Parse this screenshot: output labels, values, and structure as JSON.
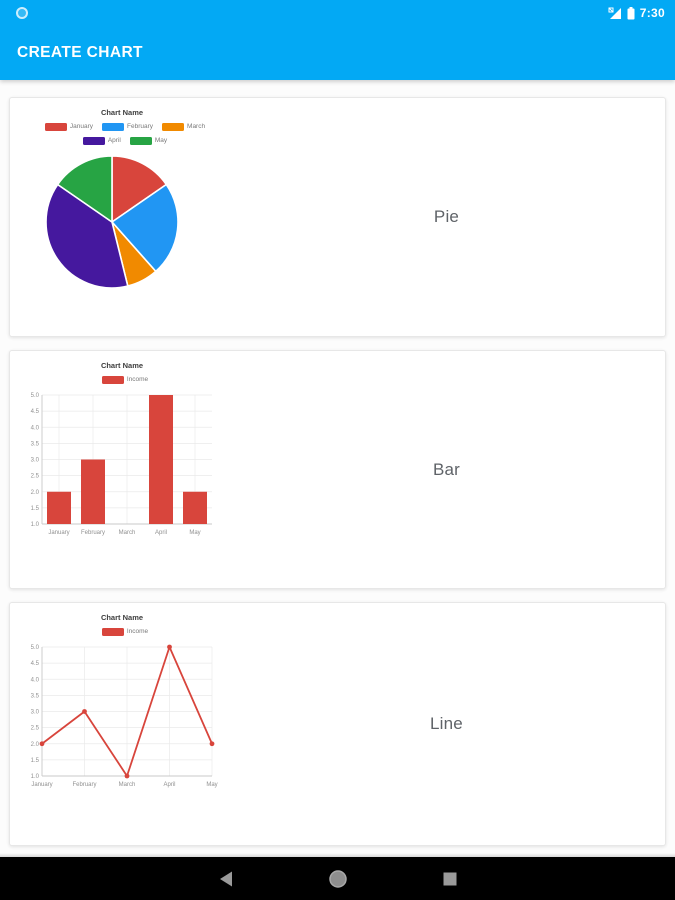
{
  "status_bar": {
    "time": "7:30",
    "icons": [
      "notification-circle-icon",
      "signal-icon",
      "battery-icon"
    ]
  },
  "app_bar": {
    "title": "CREATE CHART"
  },
  "nav_bar": {
    "items": [
      "back",
      "home",
      "recents"
    ]
  },
  "colors": {
    "app_accent": "#03A9F4",
    "series_red": "#D8453C",
    "grid": "#EAEAEA",
    "axis": "#C9C9C9",
    "tick_text": "#909090"
  },
  "cards": [
    {
      "label": "Pie",
      "chart_data": {
        "type": "pie",
        "title": "Chart Name",
        "categories": [
          "January",
          "February",
          "March",
          "April",
          "May"
        ],
        "values": [
          2,
          3,
          1,
          5,
          2
        ],
        "colors": [
          "#D8453C",
          "#2196F3",
          "#F18A00",
          "#45189E",
          "#27A444"
        ],
        "legend_position": "top"
      }
    },
    {
      "label": "Bar",
      "chart_data": {
        "type": "bar",
        "title": "Chart Name",
        "series_name": "Income",
        "categories": [
          "January",
          "February",
          "March",
          "April",
          "May"
        ],
        "values": [
          2,
          3,
          1,
          5,
          2
        ],
        "color": "#D8453C",
        "ylim": [
          1,
          5
        ],
        "ytick_step": 0.5,
        "grid": true,
        "legend_position": "top"
      }
    },
    {
      "label": "Line",
      "chart_data": {
        "type": "line",
        "title": "Chart Name",
        "series_name": "Income",
        "categories": [
          "January",
          "February",
          "March",
          "April",
          "May"
        ],
        "values": [
          2,
          3,
          1,
          5,
          2
        ],
        "color": "#D8453C",
        "ylim": [
          1,
          5
        ],
        "ytick_step": 0.5,
        "grid": true,
        "legend_position": "top"
      }
    }
  ]
}
